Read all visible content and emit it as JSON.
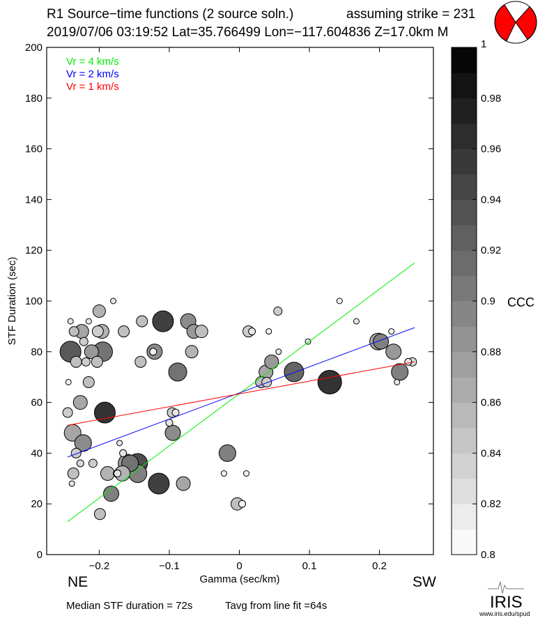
{
  "header": {
    "title": "R1 Source−time functions (2 source soln.)",
    "strike": "assuming strike = 231",
    "event_info": "2019/07/06 03:19:52  Lat=35.766499 Lon=−117.604836  Z=17.0km  M"
  },
  "footer": {
    "median": "Median STF duration = 72s",
    "tavg": "Tavg from line fit =64s",
    "logo": "IRIS",
    "logo_url": "www.iris.edu/spud"
  },
  "colors": {
    "vr4": "#00ee00",
    "vr2": "#0000ff",
    "vr1": "#ff0000",
    "beachball": "#ff0000"
  },
  "chart_data": {
    "type": "scatter",
    "xlabel": "Gamma (sec/km)",
    "ylabel": "STF Duration (sec)",
    "xlim": [
      -0.275,
      0.277
    ],
    "ylim": [
      0,
      200
    ],
    "xticks": [
      -0.2,
      -0.1,
      0,
      0.1,
      0.2
    ],
    "xtick_labels": [
      "−0.2",
      "−0.1",
      "0",
      "0.1",
      "0.2"
    ],
    "yticks": [
      0,
      20,
      40,
      60,
      80,
      100,
      120,
      140,
      160,
      180,
      200
    ],
    "ytick_labels": [
      "0",
      "20",
      "40",
      "60",
      "80",
      "100",
      "120",
      "140",
      "160",
      "180",
      "200"
    ],
    "direction_labels": {
      "left": "NE",
      "right": "SW"
    },
    "legend": [
      "Vr = 4 km/s",
      "Vr = 2 km/s",
      "Vr = 1 km/s"
    ],
    "legend_placement": "top-left",
    "lines": [
      {
        "name": "Vr = 4 km/s",
        "x": [
          -0.245,
          0.25
        ],
        "y": [
          13,
          115
        ]
      },
      {
        "name": "Vr = 2 km/s",
        "x": [
          -0.245,
          0.25
        ],
        "y": [
          38.5,
          89.5
        ]
      },
      {
        "name": "Vr = 1 km/s",
        "x": [
          -0.245,
          0.25
        ],
        "y": [
          51,
          76
        ]
      }
    ],
    "colorbar": {
      "label": "CCC",
      "range": [
        0.8,
        1.0
      ],
      "ticks": [
        "0.8",
        "0.82",
        "0.84",
        "0.86",
        "0.88",
        "0.9",
        "0.92",
        "0.94",
        "0.96",
        "0.98",
        "1"
      ],
      "steps": 20
    },
    "points_fields": [
      "gamma",
      "duration",
      "weight",
      "ccc"
    ],
    "points": [
      [
        -0.241,
        80,
        15,
        0.93
      ],
      [
        -0.238,
        48,
        12,
        0.87
      ],
      [
        -0.245,
        56,
        7,
        0.84
      ],
      [
        -0.244,
        68,
        4,
        0.81
      ],
      [
        -0.241,
        92,
        4,
        0.82
      ],
      [
        -0.236,
        88,
        7,
        0.85
      ],
      [
        -0.233,
        76,
        8,
        0.85
      ],
      [
        -0.227,
        60,
        10,
        0.87
      ],
      [
        -0.223,
        44,
        12,
        0.89
      ],
      [
        -0.233,
        40,
        7,
        0.84
      ],
      [
        -0.227,
        36,
        5,
        0.83
      ],
      [
        -0.237,
        32,
        8,
        0.85
      ],
      [
        -0.239,
        28,
        4,
        0.82
      ],
      [
        -0.225,
        88,
        10,
        0.87
      ],
      [
        -0.222,
        84,
        6,
        0.84
      ],
      [
        -0.219,
        76,
        6,
        0.84
      ],
      [
        -0.215,
        92,
        4,
        0.82
      ],
      [
        -0.215,
        68,
        8,
        0.85
      ],
      [
        -0.209,
        36,
        6,
        0.84
      ],
      [
        -0.211,
        80,
        10,
        0.88
      ],
      [
        -0.203,
        76,
        8,
        0.85
      ],
      [
        -0.2,
        96,
        9,
        0.86
      ],
      [
        -0.202,
        88,
        8,
        0.84
      ],
      [
        -0.196,
        88,
        10,
        0.86
      ],
      [
        -0.195,
        80,
        14,
        0.91
      ],
      [
        -0.192,
        56,
        15,
        0.96
      ],
      [
        -0.199,
        16,
        8,
        0.85
      ],
      [
        -0.188,
        32,
        10,
        0.86
      ],
      [
        -0.183,
        24,
        11,
        0.9
      ],
      [
        -0.18,
        100,
        4,
        0.82
      ],
      [
        -0.175,
        32,
        5,
        0.82
      ],
      [
        -0.171,
        44,
        4,
        0.82
      ],
      [
        -0.166,
        40,
        5,
        0.82
      ],
      [
        -0.165,
        88,
        8,
        0.85
      ],
      [
        -0.16,
        36,
        13,
        0.88
      ],
      [
        -0.156,
        36,
        12,
        0.91
      ],
      [
        -0.145,
        32,
        13,
        0.9
      ],
      [
        -0.145,
        36,
        14,
        0.94
      ],
      [
        -0.167,
        32,
        11,
        0.86
      ],
      [
        -0.174,
        32,
        5,
        0.82
      ],
      [
        -0.141,
        76,
        8,
        0.85
      ],
      [
        -0.139,
        92,
        8,
        0.85
      ],
      [
        -0.121,
        80,
        11,
        0.89
      ],
      [
        -0.123,
        80,
        5,
        0.81
      ],
      [
        -0.115,
        28,
        15,
        0.95
      ],
      [
        -0.109,
        92,
        15,
        0.95
      ],
      [
        -0.1,
        52,
        5,
        0.82
      ],
      [
        -0.096,
        56,
        7,
        0.84
      ],
      [
        -0.095,
        48,
        11,
        0.89
      ],
      [
        -0.091,
        56,
        5,
        0.82
      ],
      [
        -0.088,
        72,
        13,
        0.91
      ],
      [
        -0.08,
        28,
        10,
        0.87
      ],
      [
        -0.073,
        92,
        11,
        0.89
      ],
      [
        -0.068,
        80,
        9,
        0.86
      ],
      [
        -0.065,
        88,
        10,
        0.88
      ],
      [
        -0.054,
        88,
        9,
        0.85
      ],
      [
        -0.022,
        32,
        4,
        0.81
      ],
      [
        -0.017,
        40,
        12,
        0.9
      ],
      [
        -0.003,
        20,
        9,
        0.85
      ],
      [
        0.004,
        20,
        5,
        0.81
      ],
      [
        0.01,
        32,
        4,
        0.81
      ],
      [
        0.013,
        88,
        8,
        0.84
      ],
      [
        0.018,
        88,
        5,
        0.82
      ],
      [
        0.031,
        68,
        8,
        0.85
      ],
      [
        0.039,
        68,
        7,
        0.84
      ],
      [
        0.038,
        72,
        10,
        0.87
      ],
      [
        0.042,
        88,
        4,
        0.81
      ],
      [
        0.046,
        76,
        10,
        0.88
      ],
      [
        0.055,
        96,
        6,
        0.84
      ],
      [
        0.056,
        80,
        4,
        0.82
      ],
      [
        0.078,
        72,
        14,
        0.92
      ],
      [
        0.098,
        84,
        4,
        0.82
      ],
      [
        0.129,
        68,
        17,
        0.96
      ],
      [
        0.143,
        100,
        4,
        0.81
      ],
      [
        0.167,
        92,
        4,
        0.82
      ],
      [
        0.198,
        84,
        12,
        0.87
      ],
      [
        0.202,
        84,
        11,
        0.9
      ],
      [
        0.217,
        88,
        4,
        0.81
      ],
      [
        0.22,
        80,
        11,
        0.88
      ],
      [
        0.229,
        72,
        12,
        0.9
      ],
      [
        0.225,
        68,
        4,
        0.82
      ],
      [
        0.241,
        76,
        5,
        0.82
      ],
      [
        0.247,
        76,
        6,
        0.83
      ]
    ]
  }
}
